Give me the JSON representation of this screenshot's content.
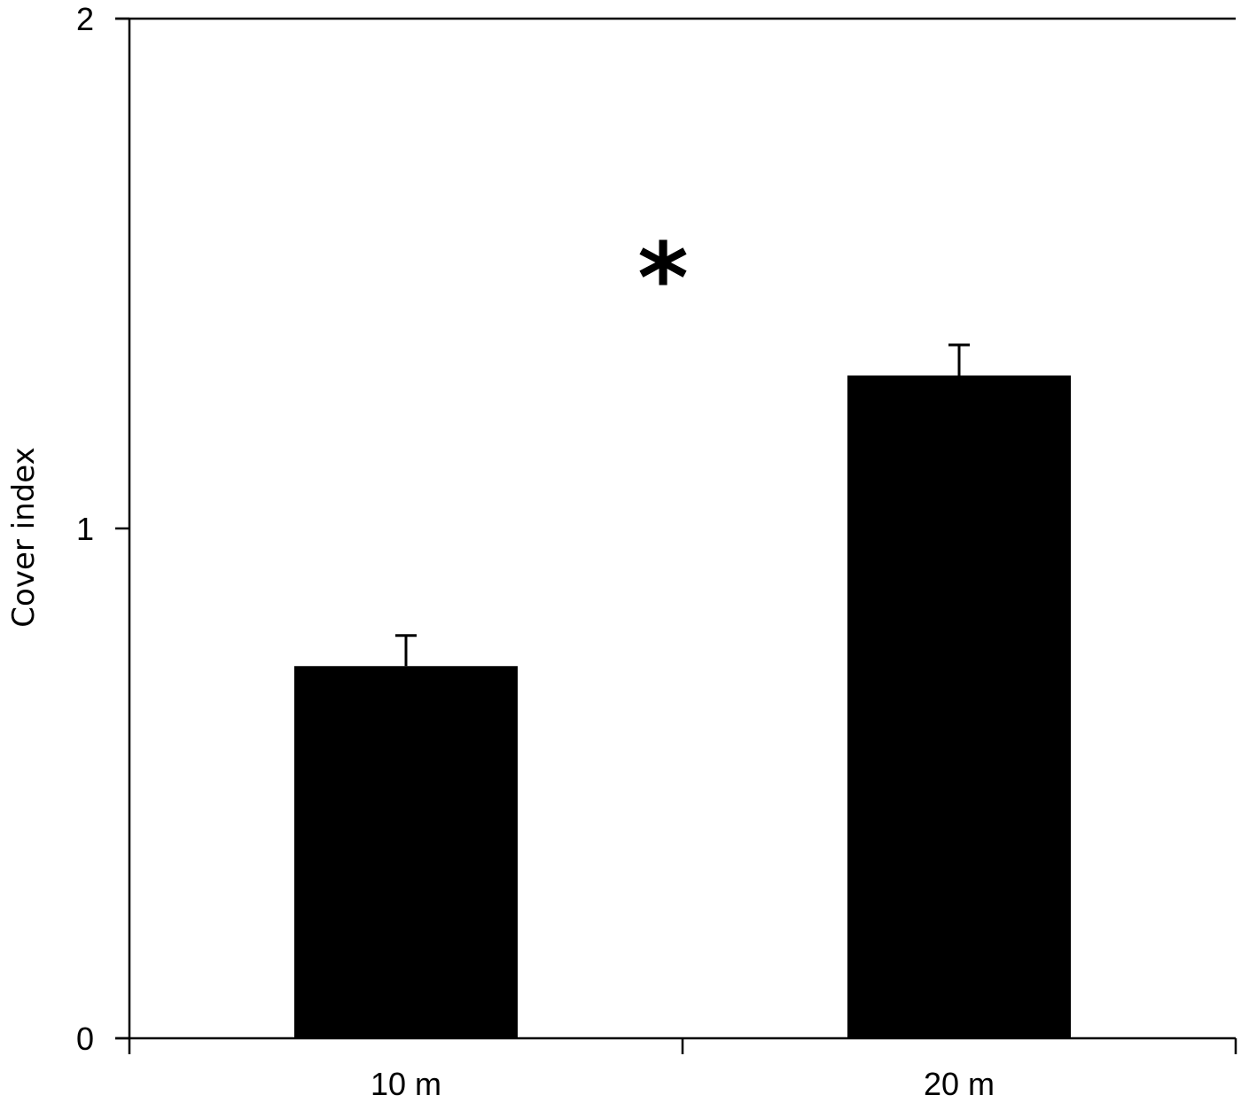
{
  "chart_data": {
    "type": "bar",
    "title": "",
    "xlabel": "",
    "ylabel": "Cover index",
    "categories": [
      "10 m",
      "20 m"
    ],
    "values": [
      0.73,
      1.3
    ],
    "error_upper": [
      0.06,
      0.06
    ],
    "ylim": [
      0,
      2
    ],
    "yticks": [
      "0",
      "1",
      "2"
    ],
    "grid": false,
    "legend": null,
    "annotations": [
      {
        "text": "*",
        "position": "between bars, above",
        "meaning": "significant difference"
      }
    ],
    "bar_color": "#000000"
  }
}
